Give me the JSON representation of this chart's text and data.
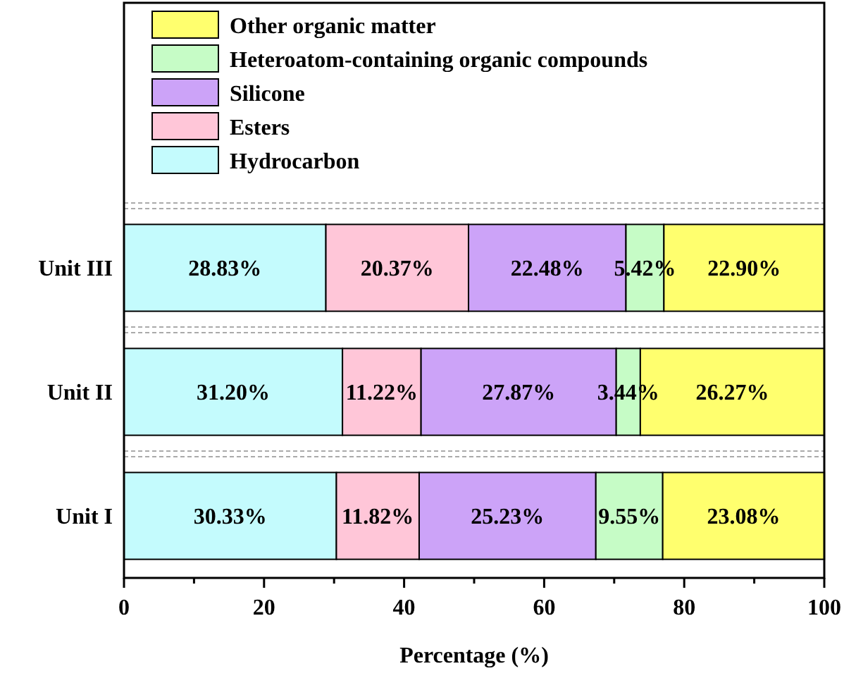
{
  "chart_data": {
    "type": "bar",
    "orientation": "horizontal",
    "stacked": true,
    "xlabel": "Percentage (%)",
    "categories": [
      "Unit III",
      "Unit II",
      "Unit I"
    ],
    "series": [
      {
        "name": "Hydrocarbon",
        "color": "#c4fbfd",
        "values": [
          28.83,
          31.2,
          30.33
        ],
        "value_labels": [
          "28.83%",
          "31.20%",
          "30.33%"
        ]
      },
      {
        "name": "Esters",
        "color": "#ffc6d8",
        "values": [
          20.37,
          11.22,
          11.82
        ],
        "value_labels": [
          "20.37%",
          "11.22%",
          "11.82%"
        ]
      },
      {
        "name": "Silicone",
        "color": "#cca3f8",
        "values": [
          22.48,
          27.87,
          25.23
        ],
        "value_labels": [
          "22.48%",
          "27.87%",
          "25.23%"
        ]
      },
      {
        "name": "Heteroatom-containing organic compounds",
        "color": "#c6fcc6",
        "values": [
          5.42,
          3.44,
          9.55
        ],
        "value_labels": [
          "5.42%",
          "3.44%",
          "9.55%"
        ]
      },
      {
        "name": "Other organic matter",
        "color": "#ffff6e",
        "values": [
          22.9,
          26.27,
          23.08
        ],
        "value_labels": [
          "22.90%",
          "26.27%",
          "23.08%"
        ]
      }
    ],
    "xlim": [
      0,
      100
    ],
    "xticks": [
      0,
      {
        "value": 10,
        "label": null
      },
      20,
      {
        "value": 30,
        "label": null
      },
      40,
      {
        "value": 50,
        "label": null
      },
      60,
      {
        "value": 70,
        "label": null
      },
      80,
      {
        "value": 90,
        "label": null
      },
      100
    ],
    "grid": "y",
    "legend": "top left"
  }
}
